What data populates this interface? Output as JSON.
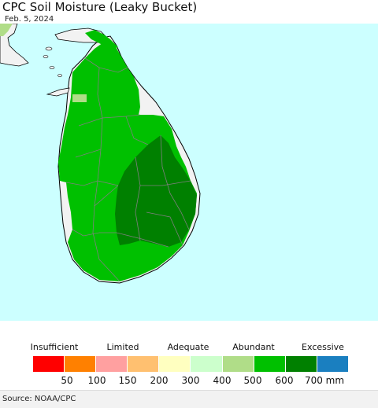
{
  "header": {
    "title": "CPC Soil Moisture (Leaky Bucket)",
    "date": "Feb. 5, 2024"
  },
  "map": {
    "ocean_color": "#ccffff",
    "dry_land_color": "#f2f2f2",
    "boundary_color": "#7f7f7f",
    "coast_color": "#000000",
    "classes_shown": [
      "Adequate 400-500",
      "Abundant 500-600",
      "Abundant 600-700"
    ]
  },
  "legend": {
    "categories": [
      {
        "label": "Insufficient",
        "pos": 69
      },
      {
        "label": "Limited",
        "pos": 156
      },
      {
        "label": "Adequate",
        "pos": 239
      },
      {
        "label": "Abundant",
        "pos": 322
      },
      {
        "label": "Excessive",
        "pos": 410
      }
    ],
    "colors": [
      "#ff0000",
      "#ff8000",
      "#ffa0a0",
      "#ffc070",
      "#ffffc0",
      "#ccffcc",
      "#b0dd88",
      "#00c000",
      "#008000",
      "#1a7fc0"
    ],
    "ticks": [
      {
        "label": "50",
        "pos": 85
      },
      {
        "label": "100",
        "pos": 123
      },
      {
        "label": "150",
        "pos": 162
      },
      {
        "label": "200",
        "pos": 202
      },
      {
        "label": "300",
        "pos": 242
      },
      {
        "label": "400",
        "pos": 282
      },
      {
        "label": "500",
        "pos": 321
      },
      {
        "label": "600",
        "pos": 361
      },
      {
        "label": "700 mm",
        "pos": 412
      }
    ]
  },
  "footer": {
    "source": "Source: NOAA/CPC"
  }
}
